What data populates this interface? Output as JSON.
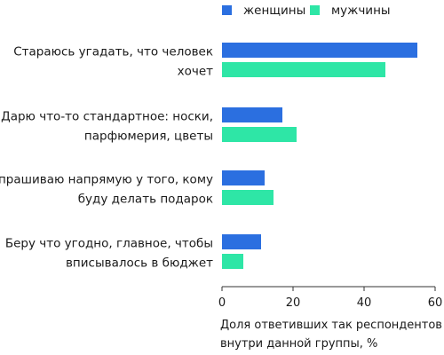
{
  "chart_data": {
    "type": "bar",
    "orientation": "horizontal",
    "categories": [
      [
        "Стараюсь угадать, что человек",
        "хочет"
      ],
      [
        "Дарю что-то стандартное: носки,",
        "парфюмерия, цветы"
      ],
      [
        "Спрашиваю напрямую у того, кому",
        "буду делать подарок"
      ],
      [
        "Беру что угодно, главное, чтобы",
        "вписывалось в бюджет"
      ]
    ],
    "series": [
      {
        "name": "женщины",
        "color": "#2b6fe0",
        "values": [
          55,
          17,
          12,
          11
        ]
      },
      {
        "name": "мужчины",
        "color": "#2ee6a6",
        "values": [
          46,
          21,
          14.5,
          6
        ]
      }
    ],
    "xlim": [
      0,
      60
    ],
    "xticks": [
      0,
      20,
      40,
      60
    ],
    "xlabel": [
      "Доля ответивших так респондентов",
      "внутри данной группы, %"
    ],
    "ylabel": "",
    "title": "",
    "grid": false,
    "legend_position": "top"
  }
}
